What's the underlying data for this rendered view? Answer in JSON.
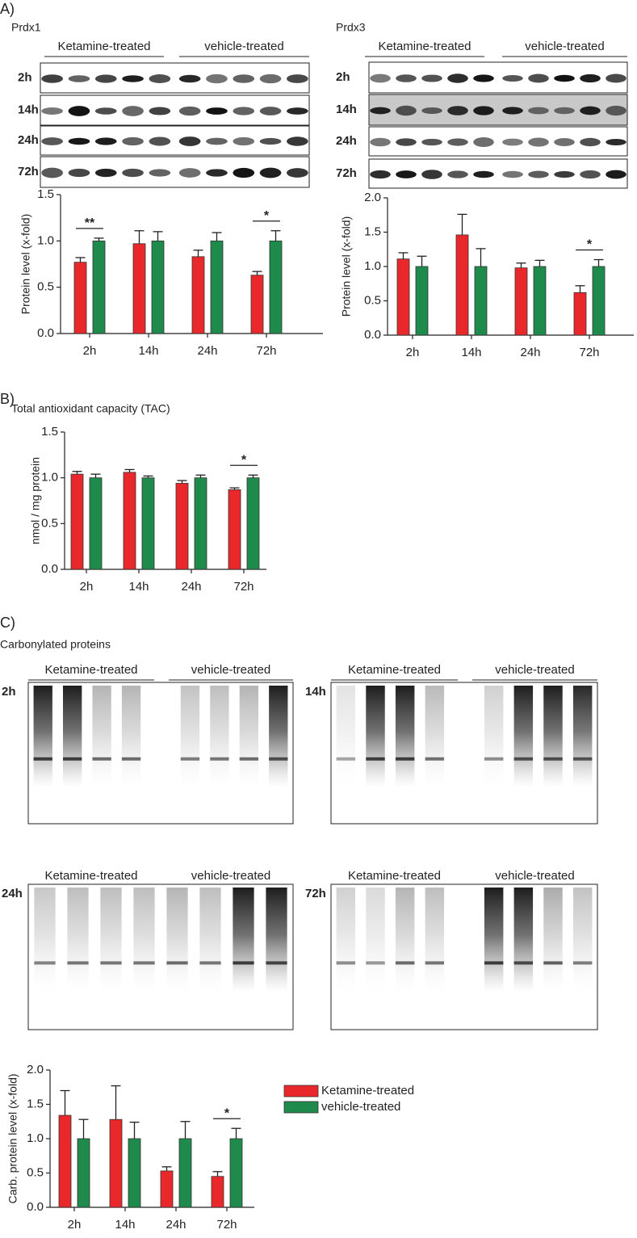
{
  "panel_a": {
    "label": "A)",
    "prdx1": {
      "title": "Prdx1",
      "groups": [
        "Ketamine-treated",
        "vehicle-treated"
      ],
      "rows": [
        "2h",
        "14h",
        "24h",
        "72h"
      ]
    },
    "prdx3": {
      "title": "Prdx3",
      "groups": [
        "Ketamine-treated",
        "vehicle-treated"
      ],
      "rows": [
        "2h",
        "14h",
        "24h",
        "72h"
      ]
    }
  },
  "panel_b": {
    "label": "B)",
    "title": "Total antioxidant capacity (TAC)"
  },
  "panel_c": {
    "label": "C)",
    "title": "Carbonylated proteins",
    "blots": [
      {
        "time": "2h",
        "groups": [
          "Ketamine-treated",
          "vehicle-treated"
        ]
      },
      {
        "time": "14h",
        "groups": [
          "Ketamine-treated",
          "vehicle-treated"
        ]
      },
      {
        "time": "24h",
        "groups": [
          "Ketamine-treated",
          "vehicle-treated"
        ]
      },
      {
        "time": "72h",
        "groups": [
          "Ketamine-treated",
          "vehicle-treated"
        ]
      }
    ]
  },
  "chart_data": [
    {
      "type": "bar",
      "ylabel": "Protein level (x-fold)",
      "categories": [
        "2h",
        "14h",
        "24h",
        "72h"
      ],
      "ylim": [
        0,
        1.5
      ],
      "yticks": [
        {
          "value": 0,
          "label": "0.0"
        },
        0.5,
        {
          "value": 1,
          "label": "1.0"
        },
        1.5
      ],
      "series": [
        {
          "color": "#e8282b",
          "values": [
            0.77,
            0.97,
            0.83,
            0.63
          ],
          "errors": [
            0.05,
            0.14,
            0.07,
            0.04
          ]
        },
        {
          "color": "#1e8a4c",
          "values": [
            1,
            1,
            1,
            1
          ],
          "errors": [
            0.03,
            0.1,
            0.09,
            0.11
          ]
        }
      ],
      "annotations": [
        {
          "text": "**",
          "at": "2h"
        },
        {
          "text": "*",
          "at": "72h"
        }
      ]
    },
    {
      "type": "bar",
      "ylabel": "Protein level (x-fold)",
      "categories": [
        "2h",
        "14h",
        "24h",
        "72h"
      ],
      "ylim": [
        0,
        2
      ],
      "yticks": [
        {
          "value": 0,
          "label": "0.0"
        },
        0.5,
        {
          "value": 1,
          "label": "1.0"
        },
        1.5,
        {
          "value": 2,
          "label": "2.0"
        }
      ],
      "series": [
        {
          "color": "#e8282b",
          "values": [
            1.11,
            1.46,
            0.98,
            0.62
          ],
          "errors": [
            0.09,
            0.3,
            0.07,
            0.1
          ]
        },
        {
          "color": "#1e8a4c",
          "values": [
            1,
            1,
            1,
            1
          ],
          "errors": [
            0.15,
            0.26,
            0.09,
            0.1
          ]
        }
      ],
      "annotations": [
        {
          "text": "*",
          "at": "72h"
        }
      ]
    },
    {
      "type": "bar",
      "ylabel": "nmol / mg protein",
      "categories": [
        "2h",
        "14h",
        "24h",
        "72h"
      ],
      "ylim": [
        0,
        1.5
      ],
      "yticks": [
        {
          "value": 0,
          "label": "0.0"
        },
        0.5,
        {
          "value": 1,
          "label": "1.0"
        },
        1.5
      ],
      "series": [
        {
          "color": "#e8282b",
          "values": [
            1.04,
            1.06,
            0.94,
            0.87
          ],
          "errors": [
            0.03,
            0.03,
            0.03,
            0.02
          ]
        },
        {
          "color": "#1e8a4c",
          "values": [
            1,
            1,
            1,
            1
          ],
          "errors": [
            0.04,
            0.02,
            0.03,
            0.03
          ]
        }
      ],
      "annotations": [
        {
          "text": "*",
          "at": "72h"
        }
      ]
    },
    {
      "type": "bar",
      "ylabel": "Carb. protein level (x-fold)",
      "categories": [
        "2h",
        "14h",
        "24h",
        "72h"
      ],
      "ylim": [
        0,
        2
      ],
      "yticks": [
        {
          "value": 0,
          "label": "0.0"
        },
        0.5,
        {
          "value": 1,
          "label": "1.0"
        },
        1.5,
        {
          "value": 2,
          "label": "2.0"
        }
      ],
      "series": [
        {
          "name": "Ketamine-treated",
          "color": "#e8282b",
          "values": [
            1.34,
            1.28,
            0.53,
            0.45
          ],
          "errors": [
            0.36,
            0.49,
            0.06,
            0.07
          ]
        },
        {
          "name": "vehicle-treated",
          "color": "#1e8a4c",
          "values": [
            1,
            1,
            1,
            1
          ],
          "errors": [
            0.28,
            0.24,
            0.25,
            0.15
          ]
        }
      ],
      "annotations": [
        {
          "text": "*",
          "at": "72h"
        }
      ]
    }
  ]
}
